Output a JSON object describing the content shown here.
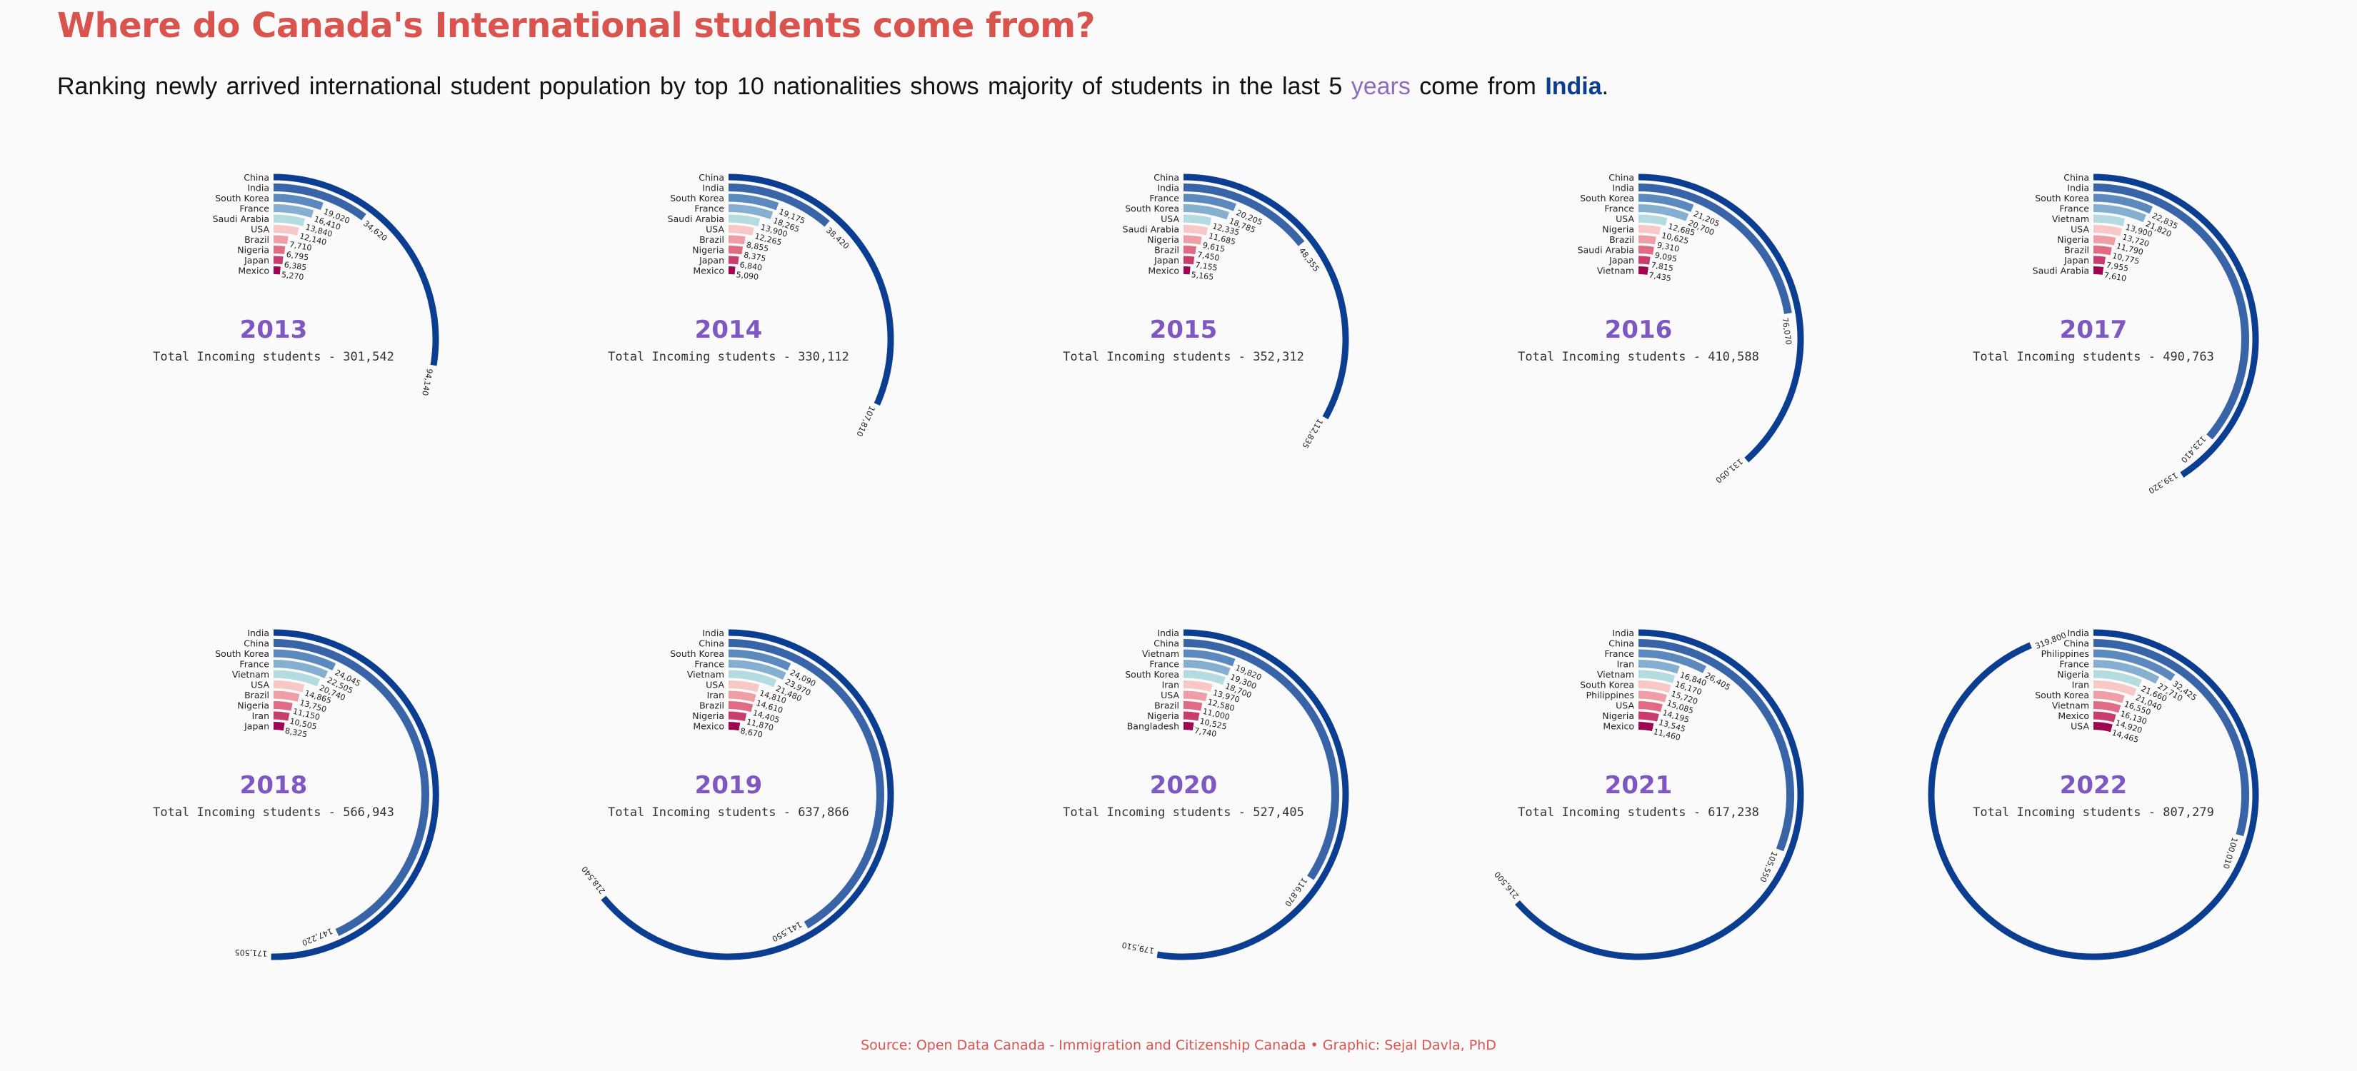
{
  "header": {
    "title": "Where do Canada's International students come from?",
    "subtitle_prefix": "Ranking newly arrived international student population by top 10 nationalities shows majority of students in the last 5 ",
    "subtitle_years": "years",
    "subtitle_middle": " come from ",
    "subtitle_india": "India",
    "subtitle_end": "."
  },
  "footer": {
    "source": "Source: Open Data Canada - Immigration and Citizenship Canada • Graphic: Sejal Davla, PhD"
  },
  "colors": {
    "title": "#d9534f",
    "year": "#7e57c2",
    "palette": [
      "#0b3d91",
      "#3a64a8",
      "#5b88bd",
      "#85afd1",
      "#b3dbe0",
      "#f7c8c6",
      "#ee9ea4",
      "#e06c84",
      "#c83d6b",
      "#9e0652"
    ]
  },
  "total_label_prefix": "Total Incoming students - ",
  "chart_data": [
    {
      "type": "radial-bar",
      "year": "2013",
      "total": "301,542",
      "countries": [
        "China",
        "India",
        "South Korea",
        "France",
        "Saudi Arabia",
        "USA",
        "Brazil",
        "Nigeria",
        "Japan",
        "Mexico"
      ],
      "values": [
        94140,
        34620,
        19020,
        16410,
        13840,
        12140,
        7710,
        6795,
        6385,
        5270
      ],
      "value_labels": [
        "94,140",
        "34,620",
        "19,020",
        "16,410",
        "13,840",
        "12,140",
        "7,710",
        "6,795",
        "6,385",
        "5,270"
      ]
    },
    {
      "type": "radial-bar",
      "year": "2014",
      "total": "330,112",
      "countries": [
        "China",
        "India",
        "South Korea",
        "France",
        "Saudi Arabia",
        "USA",
        "Brazil",
        "Nigeria",
        "Japan",
        "Mexico"
      ],
      "values": [
        107810,
        38420,
        19175,
        18265,
        13900,
        12265,
        8855,
        8375,
        6840,
        5090
      ],
      "value_labels": [
        "107,810",
        "38,420",
        "19,175",
        "18,265",
        "13,900",
        "12,265",
        "8,855",
        "8,375",
        "6,840",
        "5,090"
      ]
    },
    {
      "type": "radial-bar",
      "year": "2015",
      "total": "352,312",
      "countries": [
        "China",
        "India",
        "France",
        "South Korea",
        "USA",
        "Saudi Arabia",
        "Nigeria",
        "Brazil",
        "Japan",
        "Mexico"
      ],
      "values": [
        112835,
        48355,
        20205,
        18785,
        12335,
        11685,
        9615,
        7450,
        7155,
        5165
      ],
      "value_labels": [
        "112,835",
        "48,355",
        "20,205",
        "18,785",
        "12,335",
        "11,685",
        "9,615",
        "7,450",
        "7,155",
        "5,165"
      ]
    },
    {
      "type": "radial-bar",
      "year": "2016",
      "total": "410,588",
      "countries": [
        "China",
        "India",
        "South Korea",
        "France",
        "USA",
        "Nigeria",
        "Brazil",
        "Saudi Arabia",
        "Japan",
        "Vietnam"
      ],
      "values": [
        131050,
        76070,
        21205,
        20700,
        12685,
        10625,
        9310,
        9095,
        7815,
        7435
      ],
      "value_labels": [
        "131,050",
        "76,070",
        "21,205",
        "20,700",
        "12,685",
        "10,625",
        "9,310",
        "9,095",
        "7,815",
        "7,435"
      ]
    },
    {
      "type": "radial-bar",
      "year": "2017",
      "total": "490,763",
      "countries": [
        "China",
        "India",
        "South Korea",
        "France",
        "Vietnam",
        "USA",
        "Nigeria",
        "Brazil",
        "Japan",
        "Saudi Arabia"
      ],
      "values": [
        139320,
        123410,
        22835,
        21820,
        13900,
        13720,
        11790,
        10775,
        7955,
        7610
      ],
      "value_labels": [
        "139,320",
        "123,410",
        "22,835",
        "21,820",
        "13,900",
        "13,720",
        "11,790",
        "10,775",
        "7,955",
        "7,610"
      ]
    },
    {
      "type": "radial-bar",
      "year": "2018",
      "total": "566,943",
      "countries": [
        "India",
        "China",
        "South Korea",
        "France",
        "Vietnam",
        "USA",
        "Brazil",
        "Nigeria",
        "Iran",
        "Japan"
      ],
      "values": [
        171505,
        147220,
        24045,
        22505,
        20740,
        14865,
        13750,
        11150,
        10505,
        8325
      ],
      "value_labels": [
        "171,505",
        "147,220",
        "24,045",
        "22,505",
        "20,740",
        "14,865",
        "13,750",
        "11,150",
        "10,505",
        "8,325"
      ]
    },
    {
      "type": "radial-bar",
      "year": "2019",
      "total": "637,866",
      "countries": [
        "India",
        "China",
        "South Korea",
        "France",
        "Vietnam",
        "USA",
        "Iran",
        "Brazil",
        "Nigeria",
        "Mexico"
      ],
      "values": [
        218540,
        141550,
        24090,
        23970,
        21480,
        14810,
        14610,
        14405,
        11870,
        8670
      ],
      "value_labels": [
        "218,540",
        "141,550",
        "24,090",
        "23,970",
        "21,480",
        "14,810",
        "14,610",
        "14,405",
        "11,870",
        "8,670"
      ]
    },
    {
      "type": "radial-bar",
      "year": "2020",
      "total": "527,405",
      "countries": [
        "India",
        "China",
        "Vietnam",
        "France",
        "South Korea",
        "Iran",
        "USA",
        "Brazil",
        "Nigeria",
        "Bangladesh"
      ],
      "values": [
        179510,
        116870,
        19820,
        19300,
        18700,
        13970,
        12580,
        11000,
        10525,
        7740
      ],
      "value_labels": [
        "179,510",
        "116,870",
        "19,820",
        "19,300",
        "18,700",
        "13,970",
        "12,580",
        "11,000",
        "10,525",
        "7,740"
      ]
    },
    {
      "type": "radial-bar",
      "year": "2021",
      "total": "617,238",
      "countries": [
        "India",
        "China",
        "France",
        "Iran",
        "Vietnam",
        "South Korea",
        "Philippines",
        "USA",
        "Nigeria",
        "Mexico"
      ],
      "values": [
        216500,
        105550,
        26405,
        16840,
        16170,
        15720,
        15085,
        14195,
        13545,
        11460
      ],
      "value_labels": [
        "216,500",
        "105,550",
        "26,405",
        "16,840",
        "16,170",
        "15,720",
        "15,085",
        "14,195",
        "13,545",
        "11,460"
      ]
    },
    {
      "type": "radial-bar",
      "year": "2022",
      "total": "807,279",
      "countries": [
        "India",
        "China",
        "Philippines",
        "France",
        "Nigeria",
        "Iran",
        "South Korea",
        "Vietnam",
        "Mexico",
        "USA"
      ],
      "values": [
        319800,
        100010,
        32425,
        27710,
        21660,
        21040,
        16550,
        16130,
        14920,
        14465
      ],
      "value_labels": [
        "319,800",
        "100,010",
        "32,425",
        "27,710",
        "21,660",
        "21,040",
        "16,550",
        "16,130",
        "14,920",
        "14,465"
      ]
    }
  ]
}
